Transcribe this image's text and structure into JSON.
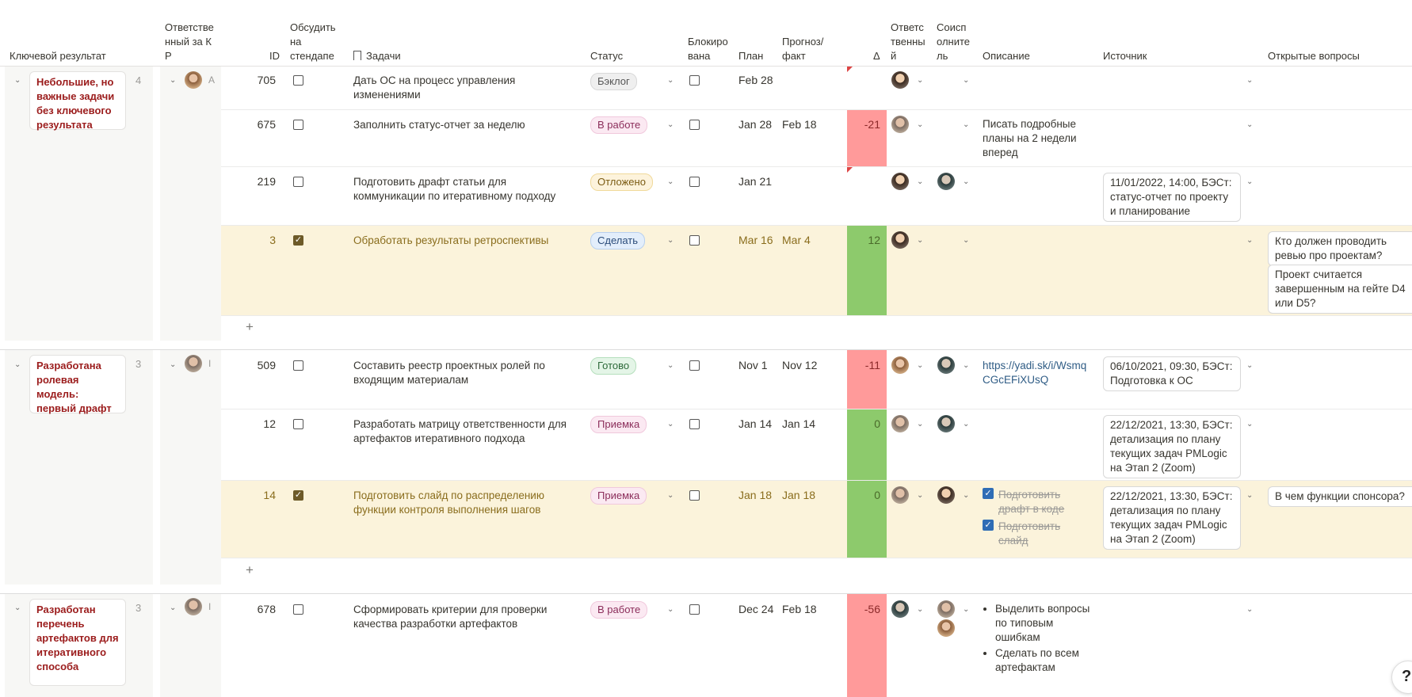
{
  "headers": {
    "kr": "Ключевой результат",
    "owner": "Ответственный за КР",
    "id": "ID",
    "discuss": "Обсудить на стендапе",
    "tasks": "Задачи",
    "status": "Статус",
    "blocked": "Блокирована",
    "plan": "План",
    "forecast": "Прогноз/ факт",
    "delta": "Δ",
    "responsible": "Ответственный",
    "executor": "Соисполнитель",
    "description": "Описание",
    "source": "Источник",
    "questions": "Открытые вопросы"
  },
  "groups": [
    {
      "kr": "Небольшие, но важные задачи без ключевого результата",
      "count": "4",
      "owner_tail": "А"
    },
    {
      "kr": "Разработана ролевая модель: первый драфт",
      "count": "3",
      "owner_tail": "I"
    },
    {
      "kr": "Разработан перечень артефактов для итеративного способа",
      "count": "3",
      "owner_tail": "I"
    }
  ],
  "rows": [
    {
      "id": "705",
      "task": "Дать ОС на процесс управления изменениями",
      "status": "Бэклог",
      "plan": "Feb 28",
      "fact": "",
      "delta": "",
      "desc": "",
      "source": "",
      "question": ""
    },
    {
      "id": "675",
      "task": "Заполнить статус-отчет за неделю",
      "status": "В работе",
      "plan": "Jan 28",
      "fact": "Feb 18",
      "delta": "-21",
      "desc": "Писать подробные планы на 2 недели вперед",
      "source": "",
      "question": ""
    },
    {
      "id": "219",
      "task": "Подготовить драфт статьи для коммуникации по итеративному подходу",
      "status": "Отложено",
      "plan": "Jan 21",
      "fact": "",
      "delta": "",
      "desc": "",
      "source": "11/01/2022, 14:00, БЭСт: статус-отчет по проекту и планирование",
      "question": ""
    },
    {
      "id": "3",
      "task": "Обработать результаты ретроспективы",
      "status": "Сделать",
      "plan": "Mar 16",
      "fact": "Mar 4",
      "delta": "12",
      "desc": "",
      "source": "",
      "question": "Кто должен проводить ревью про проектам?",
      "question2": "Проект считается завершенным на гейте D4 или D5?"
    },
    {
      "id": "509",
      "task": "Составить реестр проектных ролей по входящим материалам",
      "status": "Готово",
      "plan": "Nov 1",
      "fact": "Nov 12",
      "delta": "-11",
      "desc": "https://yadi.sk/i/WsmqCGcEFiXUsQ",
      "source": "06/10/2021, 09:30, БЭСт: Подготовка к ОС",
      "question": ""
    },
    {
      "id": "12",
      "task": "Разработать матрицу ответственности для артефактов итеративного подхода",
      "status": "Приемка",
      "plan": "Jan 14",
      "fact": "Jan 14",
      "delta": "0",
      "desc": "",
      "source": "22/12/2021, 13:30, БЭСт: детализация по плану текущих задач PMLogic на Этап 2 (Zoom)",
      "question": ""
    },
    {
      "id": "14",
      "task": "Подготовить слайд по распределению функции контроля выполнения шагов",
      "status": "Приемка",
      "plan": "Jan 18",
      "fact": "Jan 18",
      "delta": "0",
      "desc_check1": "Подготовить драфт в коде",
      "desc_check2": "Подготовить слайд",
      "source": "22/12/2021, 13:30, БЭСт: детализация по плану текущих задач PMLogic на Этап 2 (Zoom)",
      "question": "В чем функции спонсора?"
    },
    {
      "id": "678",
      "task": "Сформировать критерии для проверки качества разработки артефактов",
      "status": "В работе",
      "plan": "Dec 24",
      "fact": "Feb 18",
      "delta": "-56",
      "bullet1": "Выделить вопросы по типовым ошибкам",
      "bullet2": "Сделать по всем артефактам"
    }
  ],
  "plus": "+",
  "colors": {
    "red": "#ff9a9a",
    "green": "#8dca6c",
    "highlight": "#fbf3db",
    "kr_text": "#9b1c1c"
  }
}
